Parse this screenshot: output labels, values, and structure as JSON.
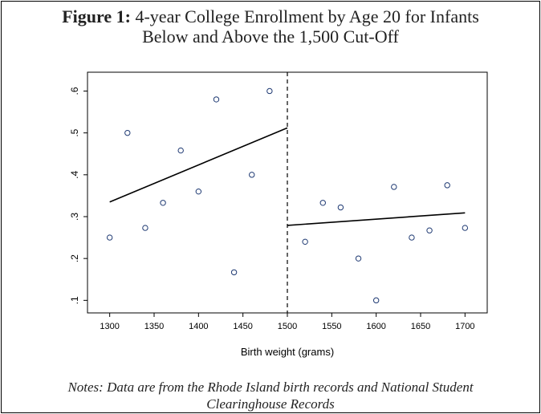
{
  "figure": {
    "label": "Figure 1:",
    "title_line1": " 4-year College Enrollment by Age 20 for Infants",
    "title_line2": "Below and Above the 1,500 Cut-Off",
    "notes_line1": "Notes: Data are from the Rhode Island birth records and National Student",
    "notes_line2": "Clearinghouse Records"
  },
  "chart_data": {
    "type": "scatter",
    "title": "4-year College Enrollment by Age 20 for Infants Below and Above the 1,500 Cut-Off",
    "xlabel": "Birth weight (grams)",
    "ylabel": "",
    "xlim": [
      1275,
      1725
    ],
    "ylim": [
      0.07,
      0.645
    ],
    "x_ticks": [
      1300,
      1350,
      1400,
      1450,
      1500,
      1550,
      1600,
      1650,
      1700
    ],
    "x_tick_labels": [
      "1300",
      "1350",
      "1400",
      "1450",
      "1500",
      "1550",
      "1600",
      "1650",
      "1700"
    ],
    "y_ticks": [
      0.1,
      0.2,
      0.3,
      0.4,
      0.5,
      0.6
    ],
    "y_tick_labels": [
      ".1",
      ".2",
      ".3",
      ".4",
      ".5",
      ".6"
    ],
    "grid": false,
    "cutoff": 1500,
    "points": [
      {
        "x": 1300,
        "y": 0.25
      },
      {
        "x": 1320,
        "y": 0.5
      },
      {
        "x": 1340,
        "y": 0.273
      },
      {
        "x": 1360,
        "y": 0.333
      },
      {
        "x": 1380,
        "y": 0.458
      },
      {
        "x": 1400,
        "y": 0.36
      },
      {
        "x": 1420,
        "y": 0.58
      },
      {
        "x": 1440,
        "y": 0.167
      },
      {
        "x": 1460,
        "y": 0.4
      },
      {
        "x": 1480,
        "y": 0.6
      },
      {
        "x": 1520,
        "y": 0.24
      },
      {
        "x": 1540,
        "y": 0.333
      },
      {
        "x": 1560,
        "y": 0.322
      },
      {
        "x": 1580,
        "y": 0.2
      },
      {
        "x": 1600,
        "y": 0.1
      },
      {
        "x": 1620,
        "y": 0.371
      },
      {
        "x": 1640,
        "y": 0.25
      },
      {
        "x": 1660,
        "y": 0.267
      },
      {
        "x": 1680,
        "y": 0.375
      },
      {
        "x": 1700,
        "y": 0.273
      }
    ],
    "fit_lines": [
      {
        "x": [
          1300,
          1500
        ],
        "y": [
          0.335,
          0.512
        ]
      },
      {
        "x": [
          1500,
          1700
        ],
        "y": [
          0.279,
          0.309
        ]
      }
    ]
  }
}
